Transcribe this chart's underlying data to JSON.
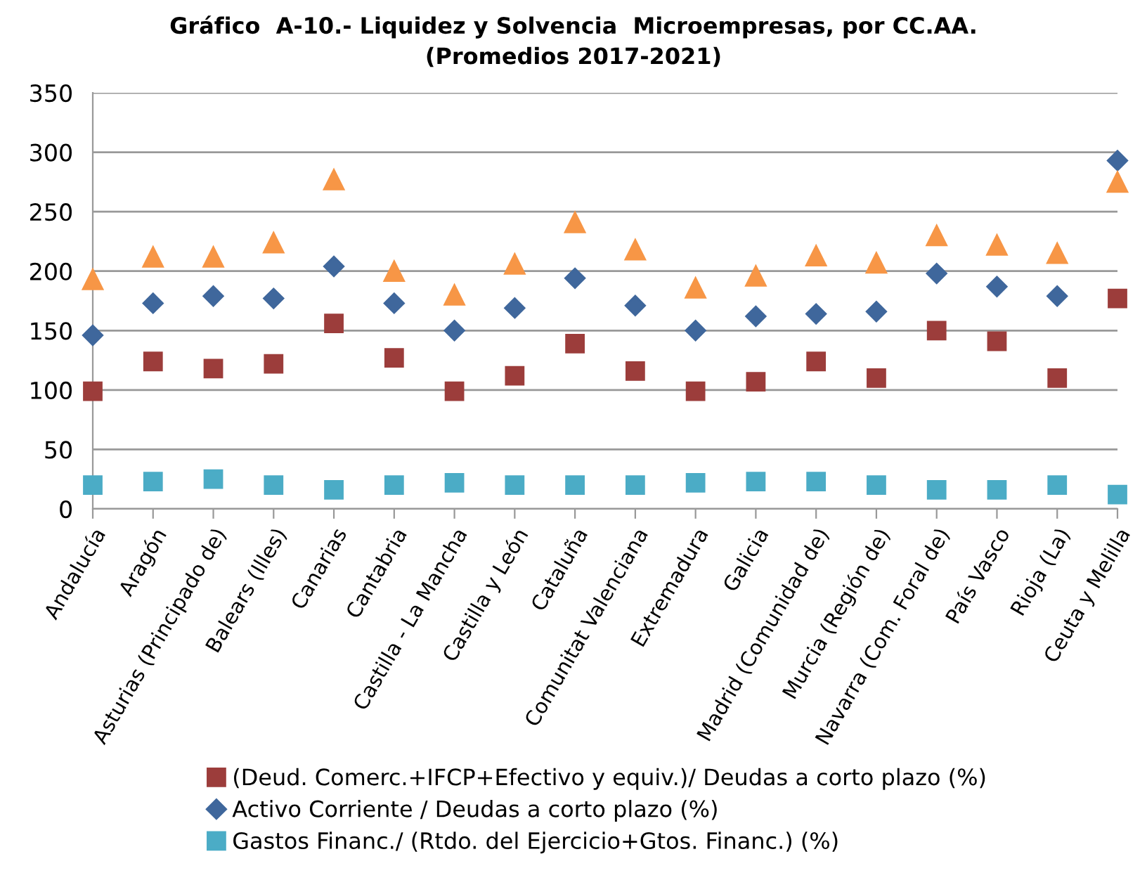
{
  "chart_data": {
    "type": "scatter",
    "title": "Gráfico  A-10.- Liquidez y Solvencia  Microempresas, por CC.AA.\n(Promedios 2017-2021)",
    "categories": [
      "Andalucía",
      "Aragón",
      "Asturias (Principado de)",
      "Balears (Illes)",
      "Canarias",
      "Cantabria",
      "Castilla - La Mancha",
      "Castilla y León",
      "Cataluña",
      "Comunitat Valenciana",
      "Extremadura",
      "Galicia",
      "Madrid (Comunidad de)",
      "Murcia (Región de)",
      "Navarra (Com. Foral de)",
      "País Vasco",
      "Rioja (La)",
      "Ceuta y Melilla"
    ],
    "series": [
      {
        "name": "(Deud. Comerc.+IFCP+Efectivo y equiv.)/ Deudas a corto plazo (%)",
        "color": "#9c3d3b",
        "marker": "square",
        "values": [
          99,
          124,
          118,
          122,
          156,
          127,
          99,
          112,
          139,
          116,
          99,
          107,
          124,
          110,
          150,
          141,
          110,
          177
        ]
      },
      {
        "name": "Activo Corriente / Deudas a corto plazo (%)",
        "color": "#3f679c",
        "marker": "diamond",
        "values": [
          146,
          173,
          179,
          177,
          204,
          173,
          150,
          169,
          194,
          171,
          150,
          162,
          164,
          166,
          198,
          187,
          179,
          293
        ]
      },
      {
        "name": "Gastos Financ./ (Rtdo. del Ejercicio+Gtos. Financ.) (%)",
        "color": "#4bacc6",
        "marker": "square",
        "values": [
          20,
          23,
          25,
          20,
          16,
          20,
          22,
          20,
          20,
          20,
          22,
          23,
          23,
          20,
          16,
          16,
          20,
          12
        ]
      },
      {
        "color": "#f79646",
        "marker": "triangle",
        "values": [
          193,
          212,
          212,
          224,
          277,
          200,
          180,
          206,
          241,
          218,
          186,
          196,
          213,
          207,
          230,
          222,
          215,
          275
        ]
      }
    ],
    "ylim": [
      0,
      350
    ],
    "yticks": [
      0,
      50,
      100,
      150,
      200,
      250,
      300,
      350
    ],
    "grid": "y",
    "legend": "bottom"
  }
}
